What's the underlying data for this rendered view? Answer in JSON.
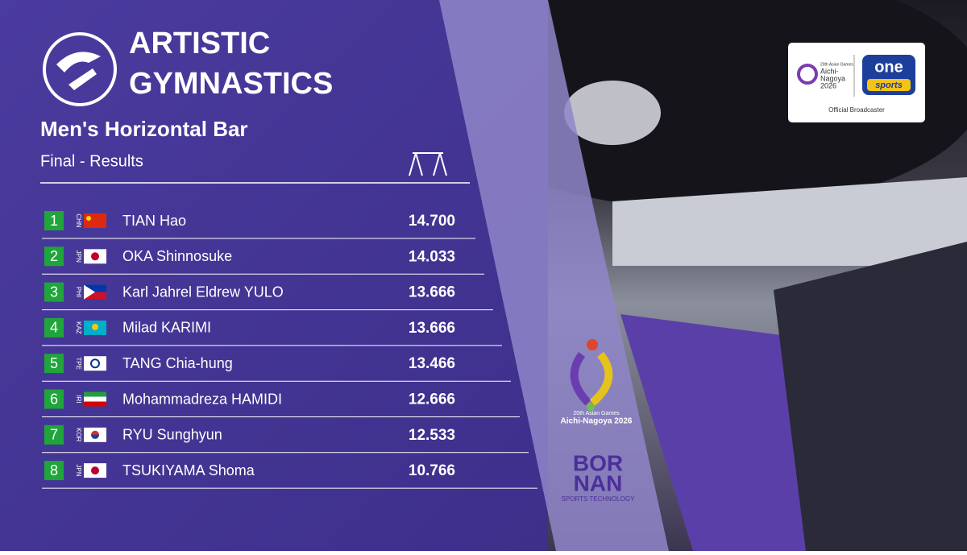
{
  "header": {
    "title_line1": "ARTISTIC",
    "title_line2": "GYMNASTICS",
    "event": "Men's Horizontal Bar",
    "phase": "Final - Results"
  },
  "results": [
    {
      "rank": "1",
      "country": "CHN",
      "name": "TIAN Hao",
      "score": "14.700"
    },
    {
      "rank": "2",
      "country": "JPN",
      "name": "OKA Shinnosuke",
      "score": "14.033"
    },
    {
      "rank": "3",
      "country": "PHI",
      "name": "Karl Jahrel Eldrew YULO",
      "score": "13.666"
    },
    {
      "rank": "4",
      "country": "KAZ",
      "name": "Milad KARIMI",
      "score": "13.666"
    },
    {
      "rank": "5",
      "country": "TPE",
      "name": "TANG Chia-hung",
      "score": "13.466"
    },
    {
      "rank": "6",
      "country": "IRI",
      "name": "Mohammadreza HAMIDI",
      "score": "12.666"
    },
    {
      "rank": "7",
      "country": "KOR",
      "name": "RYU Sunghyun",
      "score": "12.533"
    },
    {
      "rank": "8",
      "country": "JPN",
      "name": "TSUKIYAMA Shoma",
      "score": "10.766"
    }
  ],
  "games_logo": {
    "line1": "20th Asian Games",
    "line2": "Aichi-Nagoya 2026"
  },
  "sponsor": {
    "line1": "BOR",
    "line2": "NAN",
    "tagline": "SPORTS TECHNOLOGY"
  },
  "broadcaster": {
    "games_line1": "20th Asian Games",
    "games_line2": "Aichi-",
    "games_line3": "Nagoya",
    "games_line4": "2026",
    "brand1": "one",
    "brand2": "sports",
    "caption": "Official Broadcaster"
  }
}
